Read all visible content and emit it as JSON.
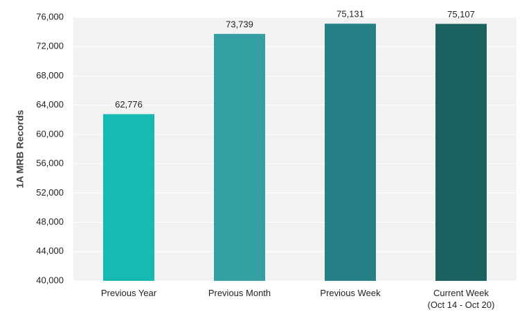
{
  "chart_data": {
    "type": "bar",
    "y_label": "1A MRB Records",
    "categories": [
      "Previous Year",
      "Previous Month",
      "Previous Week",
      "Current Week\n(Oct 14 - Oct 20)"
    ],
    "values": [
      62776,
      73739,
      75131,
      75107
    ],
    "value_labels": [
      "62,776",
      "73,739",
      "75,131",
      "75,107"
    ],
    "colors": [
      "#17bab3",
      "#34a0a4",
      "#268186",
      "#1b6160"
    ],
    "ylim": [
      40000,
      76000
    ],
    "yticks": [
      {
        "value": 40000,
        "label": "40,000"
      },
      {
        "value": 44000,
        "label": "44,000"
      },
      {
        "value": 48000,
        "label": "48,000"
      },
      {
        "value": 52000,
        "label": "52,000"
      },
      {
        "value": 56000,
        "label": "56,000"
      },
      {
        "value": 60000,
        "label": "60,000"
      },
      {
        "value": 64000,
        "label": "64,000"
      },
      {
        "value": 68000,
        "label": "68,000"
      },
      {
        "value": 72000,
        "label": "72,000"
      },
      {
        "value": 76000,
        "label": "76,000"
      }
    ],
    "grid": true
  }
}
